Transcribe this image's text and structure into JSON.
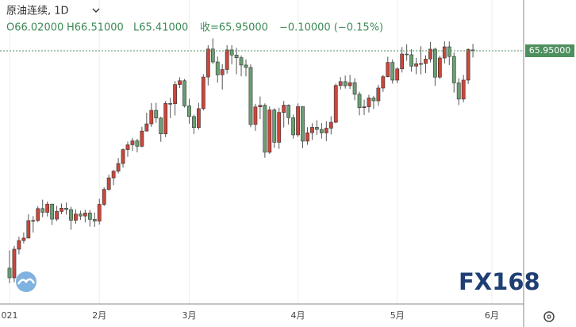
{
  "chart_data": {
    "type": "candlestick",
    "title": "原油连续, 1D",
    "legend": [
      "O66.02000",
      "H66.51000",
      "L65.41000",
      "收=65.95000",
      "−0.10000 (−0.15%)"
    ],
    "watermark": "FX168",
    "up_color": "#c9473b",
    "down_color": "#6a9f73",
    "wick_color": "#555555",
    "ylim": [
      45.7,
      70.05
    ],
    "last_price": {
      "value": 65.95,
      "label": "65.95000",
      "color": "#4e8f5e"
    },
    "grid": true,
    "categories": [
      "021",
      null,
      null,
      null,
      null,
      null,
      null,
      null,
      null,
      null,
      null,
      null,
      null,
      null,
      null,
      null,
      null,
      null,
      null,
      "2月",
      null,
      null,
      null,
      null,
      null,
      null,
      null,
      null,
      null,
      null,
      null,
      null,
      null,
      null,
      null,
      null,
      null,
      null,
      "3月",
      null,
      null,
      null,
      null,
      null,
      null,
      null,
      null,
      null,
      null,
      null,
      null,
      null,
      null,
      null,
      null,
      null,
      null,
      null,
      null,
      null,
      null,
      "4月",
      null,
      null,
      null,
      null,
      null,
      null,
      null,
      null,
      null,
      null,
      null,
      null,
      null,
      null,
      null,
      null,
      null,
      null,
      null,
      null,
      "5月",
      null,
      null,
      null,
      null,
      null,
      null,
      null,
      null,
      null,
      null,
      null,
      null,
      null,
      null,
      null,
      null,
      null,
      null,
      null,
      "6月"
    ],
    "candles": [
      [
        48.4,
        49.83,
        47.18,
        47.62
      ],
      [
        47.62,
        50.2,
        47.26,
        49.93
      ],
      [
        49.93,
        50.94,
        49.52,
        50.63
      ],
      [
        50.63,
        51.28,
        50.4,
        50.83
      ],
      [
        50.83,
        52.75,
        50.81,
        52.24
      ],
      [
        52.24,
        52.6,
        51.28,
        52.25
      ],
      [
        52.25,
        53.4,
        52.1,
        53.21
      ],
      [
        53.21,
        53.93,
        52.51,
        52.91
      ],
      [
        52.91,
        53.79,
        52.57,
        53.57
      ],
      [
        53.57,
        53.6,
        51.88,
        52.36
      ],
      [
        52.36,
        53.44,
        52.2,
        52.98
      ],
      [
        52.98,
        53.62,
        52.75,
        53.24
      ],
      [
        53.24,
        53.7,
        52.72,
        53.13
      ],
      [
        53.13,
        53.36,
        51.5,
        52.27
      ],
      [
        52.27,
        53.15,
        51.99,
        52.77
      ],
      [
        52.77,
        53.05,
        52.3,
        52.61
      ],
      [
        52.61,
        53.12,
        52.1,
        52.85
      ],
      [
        52.85,
        53.1,
        51.76,
        52.34
      ],
      [
        52.34,
        52.89,
        51.73,
        52.2
      ],
      [
        52.2,
        54.0,
        51.92,
        53.55
      ],
      [
        53.55,
        54.93,
        53.41,
        54.76
      ],
      [
        54.76,
        55.95,
        54.65,
        55.69
      ],
      [
        55.69,
        56.33,
        55.1,
        56.23
      ],
      [
        56.23,
        57.29,
        56.05,
        56.85
      ],
      [
        56.85,
        58.07,
        56.52,
        57.97
      ],
      [
        57.97,
        58.62,
        57.39,
        58.36
      ],
      [
        58.36,
        58.91,
        57.88,
        58.68
      ],
      [
        58.68,
        58.84,
        57.76,
        58.24
      ],
      [
        58.24,
        59.82,
        58.16,
        59.47
      ],
      [
        59.47,
        60.95,
        59.43,
        60.05
      ],
      [
        60.05,
        61.73,
        59.8,
        61.14
      ],
      [
        61.14,
        61.75,
        60.13,
        60.52
      ],
      [
        60.52,
        60.62,
        58.6,
        59.24
      ],
      [
        59.24,
        61.9,
        58.98,
        61.7
      ],
      [
        61.7,
        62.15,
        60.52,
        61.67
      ],
      [
        61.67,
        63.5,
        60.73,
        63.22
      ],
      [
        63.22,
        63.81,
        62.93,
        63.53
      ],
      [
        63.53,
        63.67,
        61.37,
        61.5
      ],
      [
        61.5,
        62.08,
        60.06,
        60.64
      ],
      [
        60.64,
        60.79,
        59.23,
        59.75
      ],
      [
        59.75,
        61.75,
        59.59,
        61.28
      ],
      [
        61.28,
        64.06,
        61.14,
        63.83
      ],
      [
        63.83,
        66.4,
        63.15,
        66.09
      ],
      [
        66.09,
        66.95,
        64.89,
        65.05
      ],
      [
        65.05,
        65.48,
        63.38,
        64.01
      ],
      [
        64.01,
        64.86,
        62.82,
        64.44
      ],
      [
        64.44,
        66.4,
        64.1,
        66.02
      ],
      [
        66.02,
        66.4,
        64.85,
        65.61
      ],
      [
        65.61,
        66.19,
        64.06,
        65.39
      ],
      [
        65.39,
        65.57,
        63.89,
        64.8
      ],
      [
        64.8,
        65.25,
        63.88,
        64.6
      ],
      [
        64.6,
        64.85,
        59.78,
        60.0
      ],
      [
        60.0,
        61.67,
        59.49,
        61.42
      ],
      [
        61.42,
        62.26,
        60.43,
        61.55
      ],
      [
        61.55,
        61.7,
        57.32,
        57.76
      ],
      [
        57.76,
        61.46,
        57.63,
        61.18
      ],
      [
        61.18,
        61.31,
        58.11,
        58.56
      ],
      [
        58.56,
        61.35,
        58.03,
        60.97
      ],
      [
        60.97,
        61.9,
        59.76,
        61.56
      ],
      [
        61.56,
        61.62,
        60.0,
        60.55
      ],
      [
        60.55,
        60.8,
        58.86,
        59.16
      ],
      [
        59.16,
        61.7,
        58.99,
        61.45
      ],
      [
        61.45,
        61.48,
        58.08,
        58.65
      ],
      [
        58.65,
        59.78,
        58.36,
        59.33
      ],
      [
        59.33,
        60.1,
        58.76,
        59.77
      ],
      [
        59.77,
        60.34,
        59.15,
        59.6
      ],
      [
        59.6,
        60.11,
        58.86,
        59.32
      ],
      [
        59.32,
        60.26,
        58.66,
        59.7
      ],
      [
        59.7,
        60.66,
        59.2,
        60.18
      ],
      [
        60.18,
        63.3,
        60.1,
        63.15
      ],
      [
        63.15,
        63.82,
        62.82,
        63.46
      ],
      [
        63.46,
        63.95,
        62.9,
        63.13
      ],
      [
        63.13,
        64.0,
        62.86,
        63.38
      ],
      [
        63.38,
        63.73,
        61.96,
        62.44
      ],
      [
        62.44,
        62.64,
        60.74,
        61.35
      ],
      [
        61.35,
        62.0,
        60.76,
        61.43
      ],
      [
        61.43,
        62.4,
        60.97,
        62.14
      ],
      [
        62.14,
        62.31,
        61.25,
        61.91
      ],
      [
        61.91,
        63.2,
        61.5,
        62.94
      ],
      [
        62.94,
        64.01,
        62.63,
        63.86
      ],
      [
        63.86,
        65.47,
        63.8,
        65.01
      ],
      [
        65.01,
        65.25,
        63.3,
        63.58
      ],
      [
        63.58,
        64.62,
        63.33,
        64.49
      ],
      [
        64.49,
        66.25,
        64.2,
        65.69
      ],
      [
        65.69,
        66.47,
        65.15,
        65.63
      ],
      [
        65.63,
        66.07,
        64.26,
        64.71
      ],
      [
        64.71,
        65.37,
        64.06,
        64.9
      ],
      [
        64.9,
        66.32,
        64.05,
        64.92
      ],
      [
        64.92,
        65.58,
        64.15,
        65.28
      ],
      [
        65.28,
        66.66,
        65.01,
        66.08
      ],
      [
        66.08,
        66.2,
        63.13,
        63.82
      ],
      [
        63.82,
        65.55,
        63.68,
        65.37
      ],
      [
        65.37,
        66.72,
        64.93,
        66.27
      ],
      [
        66.27,
        66.7,
        64.8,
        65.49
      ],
      [
        65.49,
        65.81,
        62.57,
        63.36
      ],
      [
        63.36,
        63.74,
        61.56,
        62.05
      ],
      [
        62.05,
        64.0,
        61.8,
        63.58
      ],
      [
        63.58,
        66.16,
        63.27,
        66.05
      ],
      [
        66.02,
        66.51,
        65.41,
        65.95
      ],
      null,
      null,
      null,
      null
    ]
  }
}
